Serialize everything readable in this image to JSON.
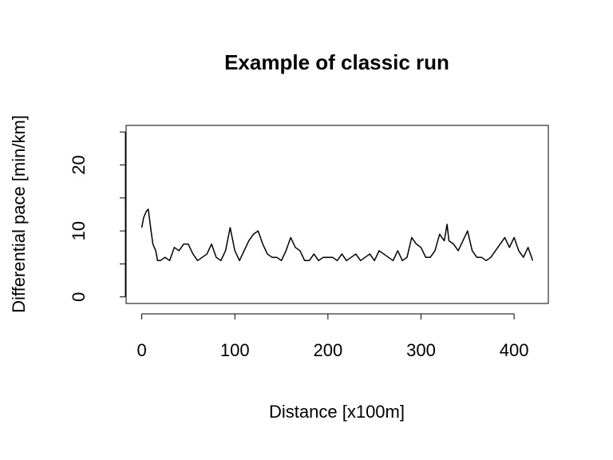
{
  "chart_data": {
    "type": "line",
    "title": "Example of classic run",
    "x_label": "Distance [x100m]",
    "y_label": "Differential pace [min/km]",
    "color": "#000000",
    "x": [
      0,
      2,
      5,
      7,
      10,
      12,
      15,
      17,
      20,
      25,
      30,
      35,
      40,
      45,
      50,
      55,
      60,
      65,
      70,
      75,
      80,
      85,
      90,
      95,
      100,
      105,
      110,
      115,
      120,
      125,
      130,
      135,
      140,
      145,
      150,
      155,
      160,
      165,
      170,
      175,
      180,
      185,
      190,
      195,
      200,
      205,
      210,
      215,
      220,
      225,
      230,
      235,
      240,
      245,
      250,
      255,
      260,
      265,
      270,
      275,
      280,
      285,
      290,
      295,
      300,
      305,
      310,
      315,
      320,
      325,
      328,
      330,
      335,
      340,
      345,
      350,
      355,
      360,
      365,
      370,
      375,
      380,
      385,
      390,
      395,
      400,
      405,
      410,
      415,
      420
    ],
    "values": [
      10.5,
      12,
      13,
      13.3,
      10,
      8,
      7,
      5.5,
      5.5,
      6,
      5.5,
      7.5,
      7,
      8,
      8,
      6.5,
      5.5,
      6,
      6.5,
      8,
      6,
      5.5,
      7,
      10.5,
      7,
      5.5,
      7,
      8.5,
      9.5,
      10,
      8,
      6.5,
      6,
      6,
      5.5,
      7,
      9,
      7.5,
      7,
      5.5,
      5.5,
      6.5,
      5.5,
      6,
      6,
      6,
      5.5,
      6.5,
      5.5,
      6,
      6.5,
      5.5,
      6,
      6.5,
      5.5,
      7,
      6.5,
      6,
      5.5,
      7,
      5.5,
      6,
      9,
      8,
      7.5,
      6,
      6,
      7,
      9.5,
      8.5,
      11,
      8.5,
      8,
      7,
      8.5,
      10,
      7,
      6,
      6,
      5.5,
      6,
      7,
      8,
      9,
      7.5,
      9,
      7,
      6,
      7.5,
      5.5
    ],
    "xlim": [
      -16.8,
      436.8
    ],
    "ylim": [
      -1,
      26
    ],
    "xticks": [
      0,
      100,
      200,
      300,
      400
    ],
    "yticks": [
      0,
      10,
      20
    ],
    "yticks_unlabeled": [
      5,
      15,
      25
    ]
  }
}
